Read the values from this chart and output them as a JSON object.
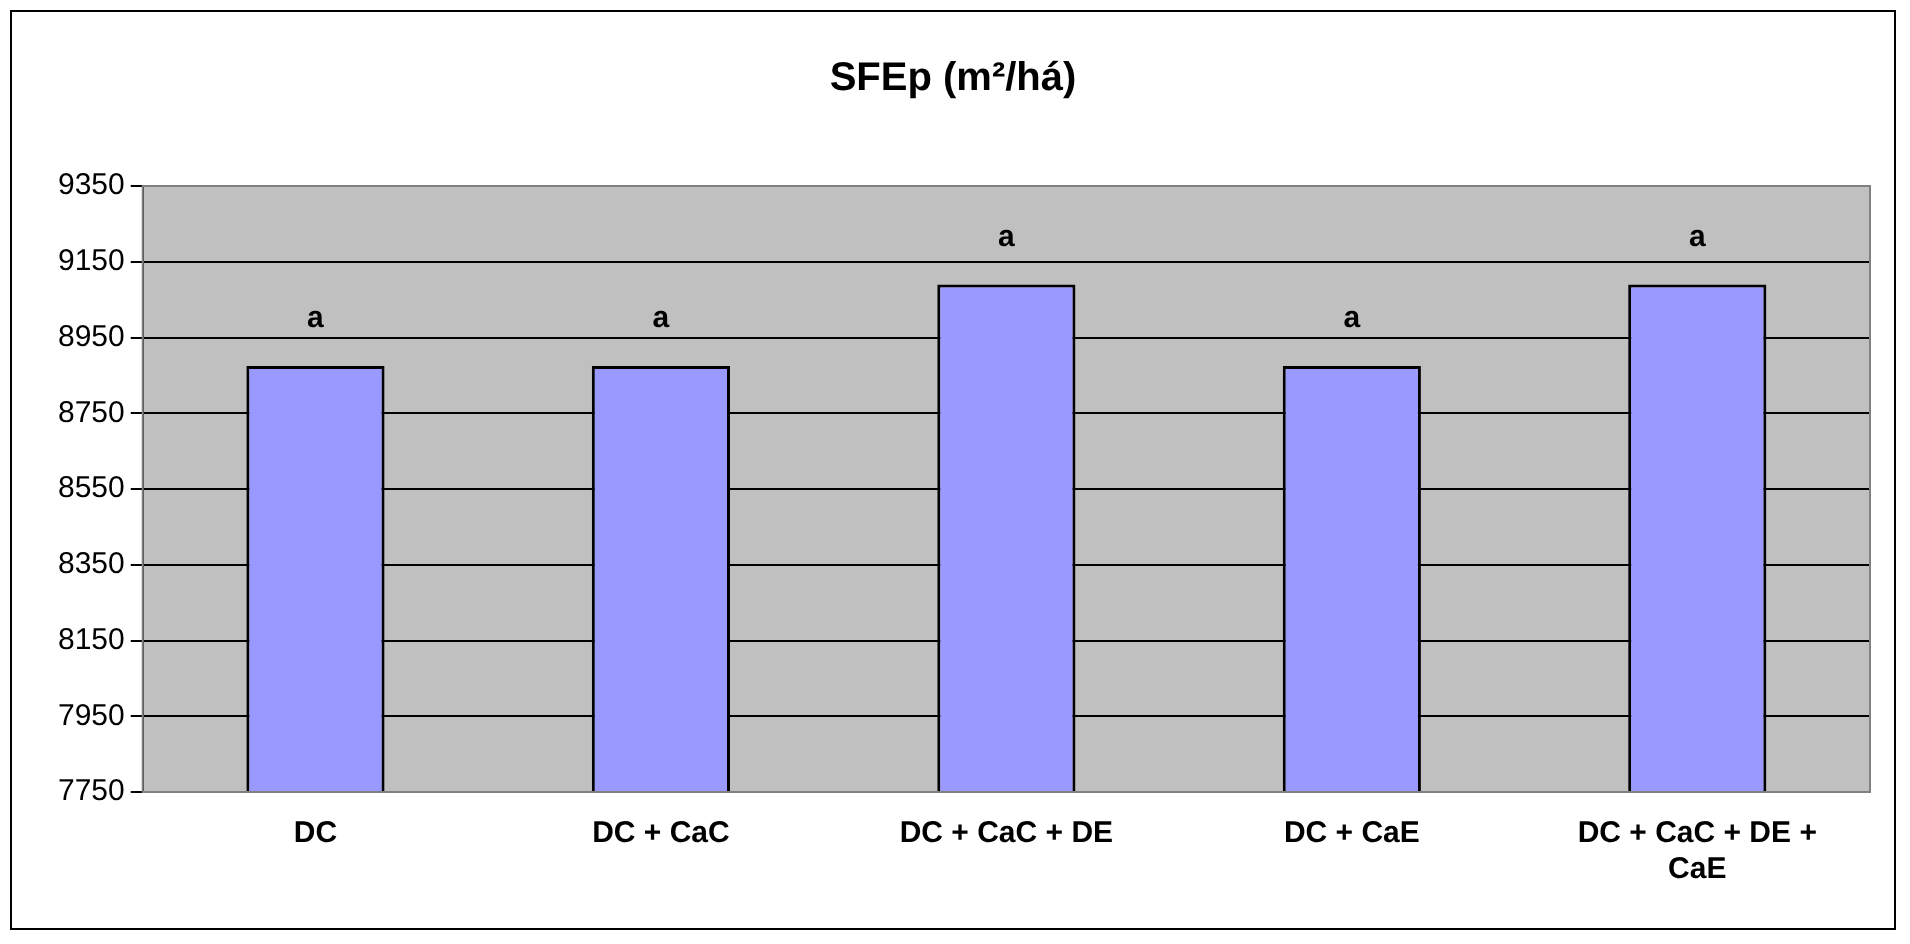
{
  "chart_data": {
    "type": "bar",
    "title": "SFEp (m²/há)",
    "categories": [
      "DC",
      "DC + CaC",
      "DC + CaC + DE",
      "DC + CaE",
      "DC + CaC + DE + CaE"
    ],
    "values": [
      8875,
      8875,
      9090,
      8875,
      9090
    ],
    "color": "#9999ff",
    "ylim": [
      7750,
      9350
    ],
    "yticks": [
      7750,
      7950,
      8150,
      8350,
      8550,
      8750,
      8950,
      9150,
      9350
    ],
    "grid": "y",
    "legend": false,
    "annotations": [
      {
        "text": "a",
        "x": "DC",
        "y": 8875
      },
      {
        "text": "a",
        "x": "DC + CaC",
        "y": 8875
      },
      {
        "text": "a",
        "x": "DC + CaC + DE",
        "y": 9090
      },
      {
        "text": "a",
        "x": "DC + CaE",
        "y": 8875
      },
      {
        "text": "a",
        "x": "DC + CaC + DE + CaE",
        "y": 9090
      }
    ]
  }
}
